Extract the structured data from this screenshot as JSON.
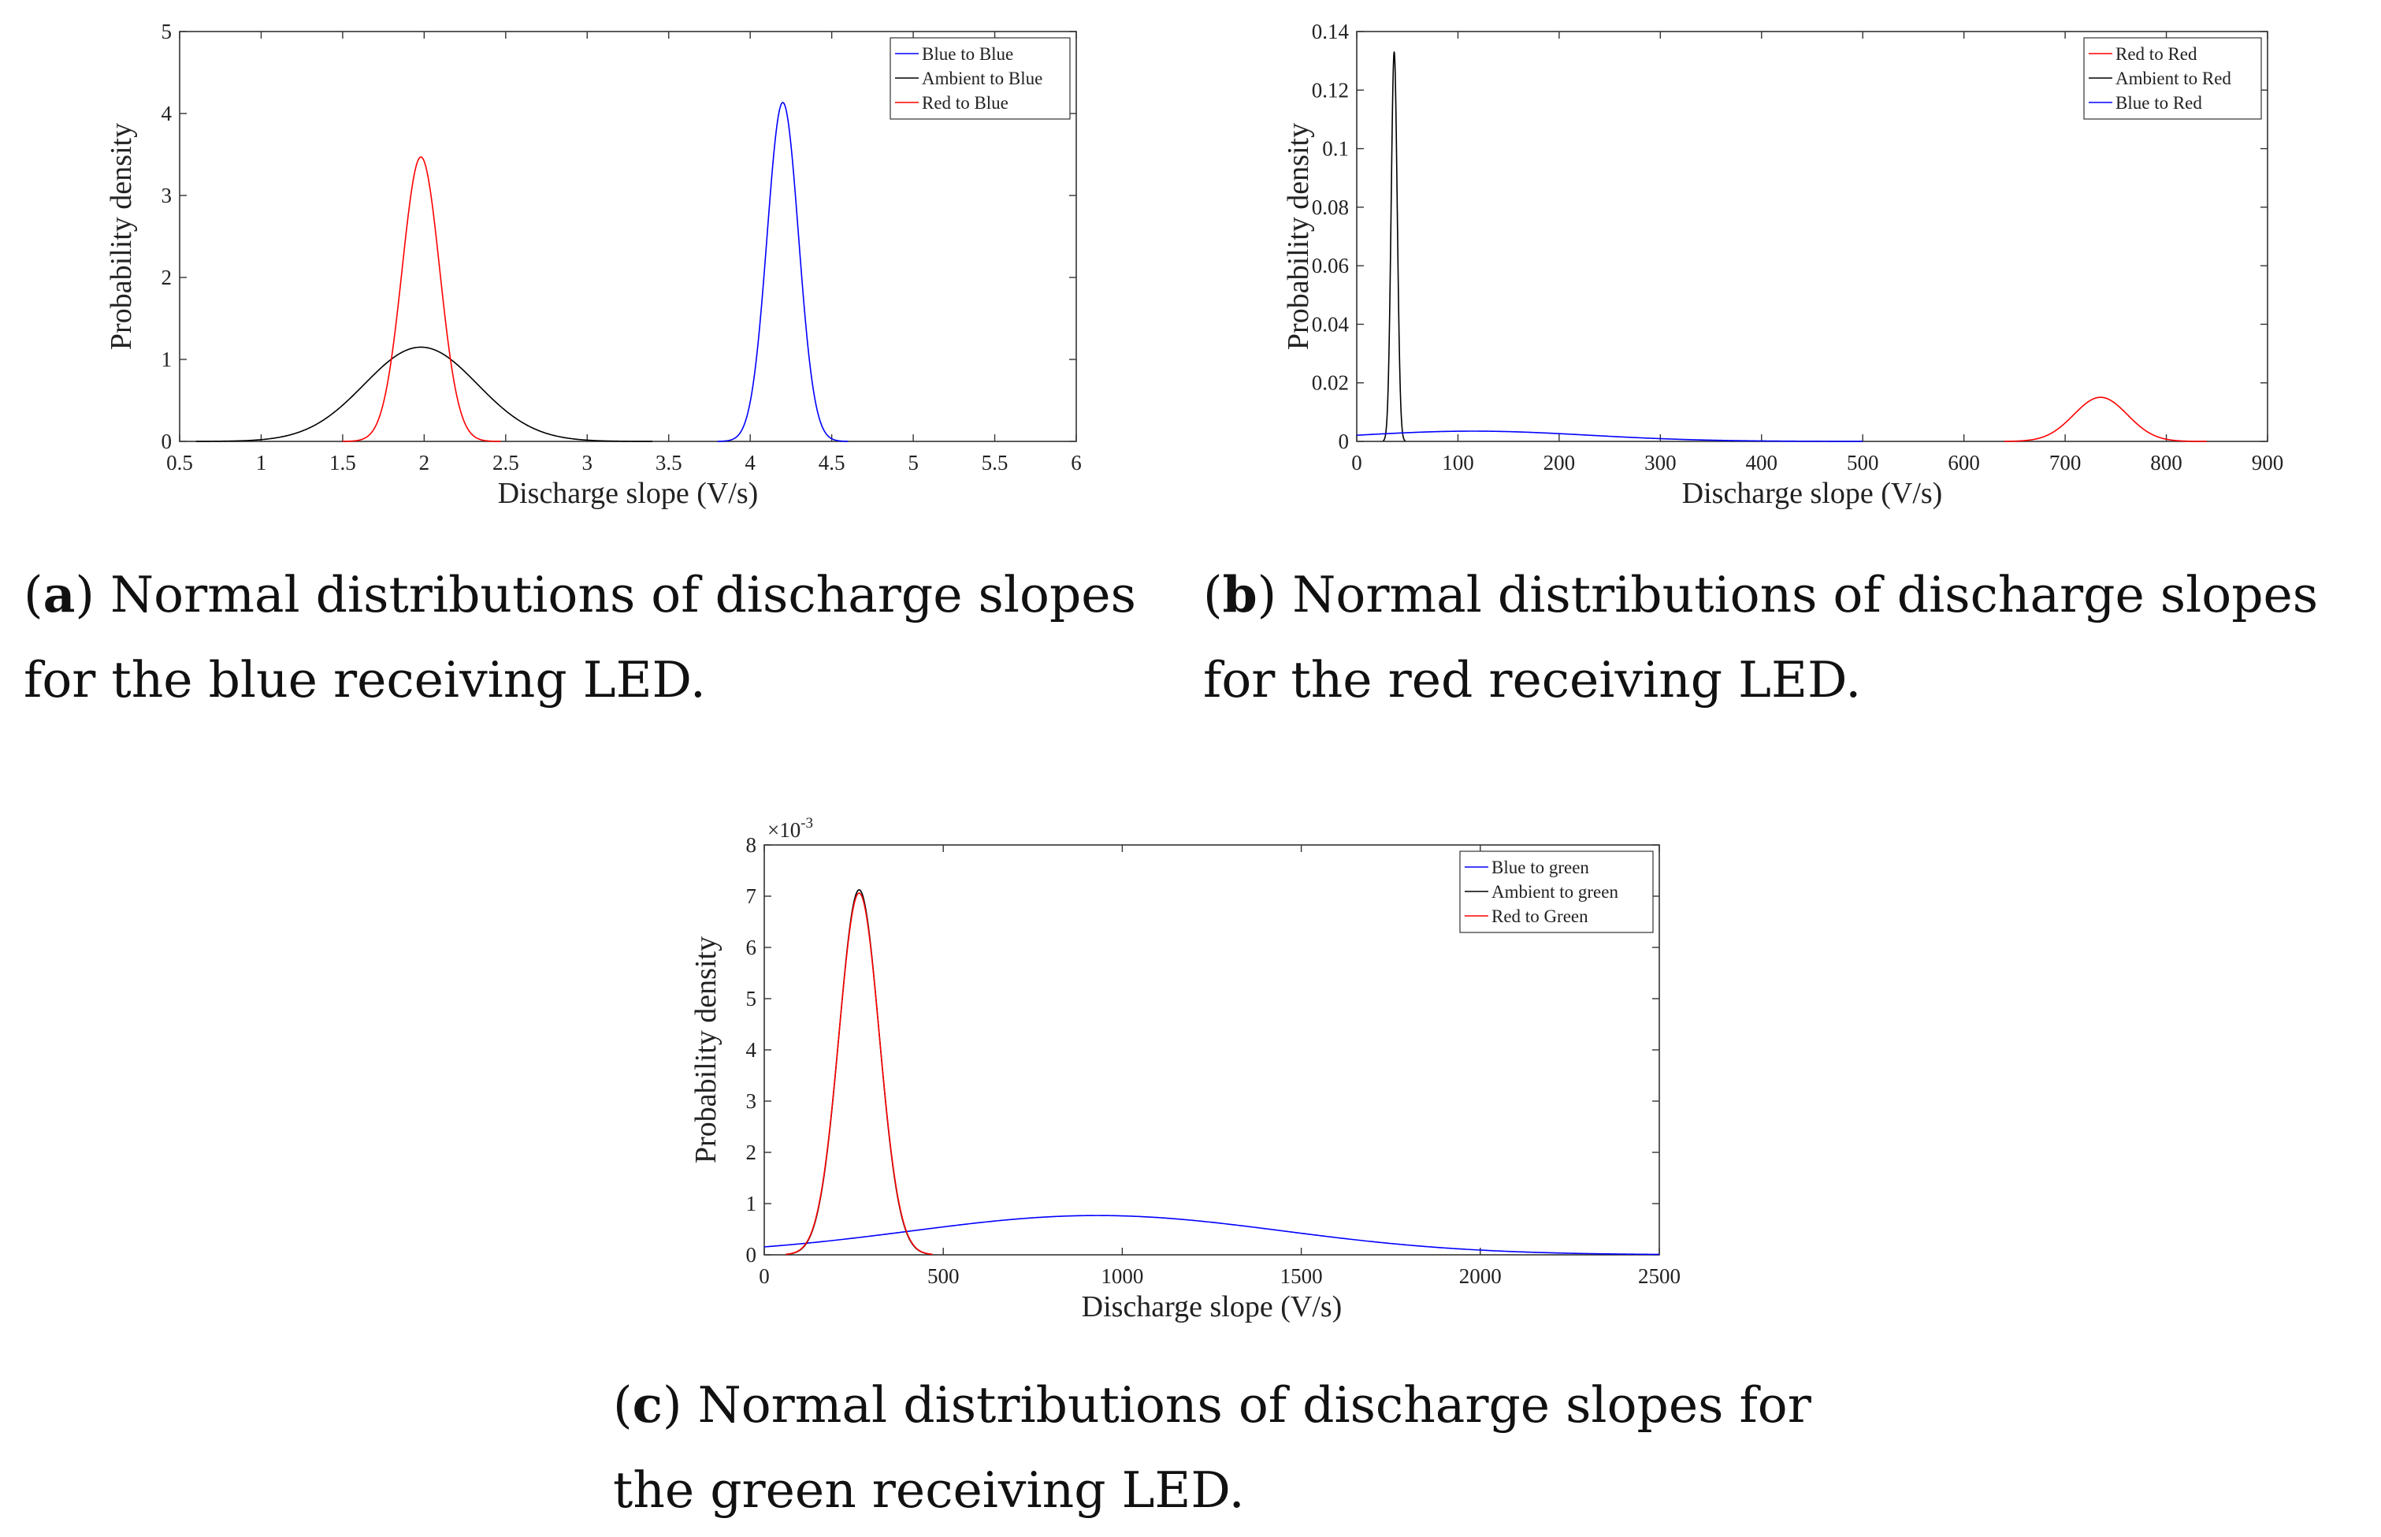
{
  "chart_data": [
    {
      "id": "a",
      "type": "line",
      "xlabel": "Discharge slope (V/s)",
      "ylabel": "Probability density",
      "xlim": [
        0.5,
        6
      ],
      "ylim": [
        0,
        5
      ],
      "xticks": [
        "0.5",
        "1",
        "1.5",
        "2",
        "2.5",
        "3",
        "3.5",
        "4",
        "4.5",
        "5",
        "5.5",
        "6"
      ],
      "yticks": [
        "0",
        "1",
        "2",
        "3",
        "4",
        "5"
      ],
      "legend": "top-right",
      "series": [
        {
          "name": "Blue to Blue",
          "color": "#0000ff",
          "mean": 4.2,
          "sd": 0.0965,
          "support": [
            3.8,
            4.6
          ]
        },
        {
          "name": "Ambient to Blue",
          "color": "#000000",
          "mean": 1.98,
          "sd": 0.347,
          "support": [
            0.6,
            3.4
          ]
        },
        {
          "name": "Red to Blue",
          "color": "#ff0000",
          "mean": 1.98,
          "sd": 0.115,
          "support": [
            1.5,
            2.47
          ]
        }
      ],
      "caption_label": "a",
      "caption_text": "Normal distributions of discharge slopes for the blue receiving LED."
    },
    {
      "id": "b",
      "type": "line",
      "xlabel": "Discharge slope (V/s)",
      "ylabel": "Probability density",
      "xlim": [
        0,
        900
      ],
      "ylim": [
        0,
        0.14
      ],
      "xticks": [
        "0",
        "100",
        "200",
        "300",
        "400",
        "500",
        "600",
        "700",
        "800",
        "900"
      ],
      "yticks": [
        "0",
        "0.02",
        "0.04",
        "0.06",
        "0.08",
        "0.1",
        "0.12",
        "0.14"
      ],
      "legend": "top-right",
      "series": [
        {
          "name": "Red to Red",
          "color": "#ff0000",
          "mean": 735,
          "sd": 26.5,
          "support": [
            640,
            840
          ]
        },
        {
          "name": "Ambient to Red",
          "color": "#000000",
          "mean": 37,
          "sd": 3.0,
          "support": [
            26,
            48
          ]
        },
        {
          "name": "Blue to Red",
          "color": "#0000ff",
          "mean": 115,
          "sd": 114,
          "support": [
            0,
            500
          ]
        }
      ],
      "caption_label": "b",
      "caption_text": "Normal distributions of discharge slopes for the red receiving LED."
    },
    {
      "id": "c",
      "type": "line",
      "xlabel": "Discharge slope (V/s)",
      "ylabel": "Probability density",
      "y_exponent": "×10",
      "y_exponent_power": "-3",
      "xlim": [
        0,
        2500
      ],
      "ylim": [
        0,
        8
      ],
      "xticks": [
        "0",
        "500",
        "1000",
        "1500",
        "2000",
        "2500"
      ],
      "yticks": [
        "0",
        "1",
        "2",
        "3",
        "4",
        "5",
        "6",
        "7",
        "8"
      ],
      "legend": "top-right",
      "series": [
        {
          "name": "Blue to green",
          "color": "#0000ff",
          "mean": 930,
          "sd": 520,
          "scale": 1000,
          "support": [
            0,
            2500
          ]
        },
        {
          "name": "Ambient to green",
          "color": "#000000",
          "mean": 265,
          "sd": 56,
          "scale": 1000,
          "support": [
            60,
            470
          ]
        },
        {
          "name": "Red to Green",
          "color": "#ff0000",
          "mean": 265,
          "sd": 56.5,
          "scale": 1000,
          "support": [
            60,
            470
          ]
        }
      ],
      "caption_label": "c",
      "caption_text": "Normal distributions of discharge slopes for the green receiving LED."
    }
  ]
}
